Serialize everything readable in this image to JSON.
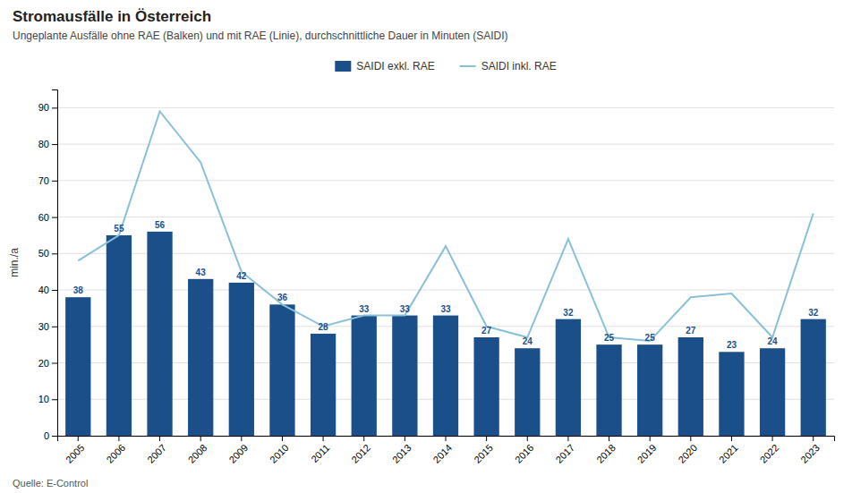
{
  "chart_data": {
    "type": "bar",
    "title": "Stromausfälle in Österreich",
    "subtitle": "Ungeplante Ausfälle ohne RAE (Balken) und mit RAE (Linie), durchschnittliche Dauer in Minuten (SAIDI)",
    "source": "Quelle: E-Control",
    "categories": [
      "2005",
      "2006",
      "2007",
      "2008",
      "2009",
      "2010",
      "2011",
      "2012",
      "2013",
      "2014",
      "2015",
      "2016",
      "2017",
      "2018",
      "2019",
      "2020",
      "2021",
      "2022",
      "2023"
    ],
    "series": [
      {
        "name": "SAIDI exkl. RAE",
        "type": "bar",
        "color": "#1b4f8a",
        "data_labels": true,
        "values": [
          38,
          55,
          56,
          43,
          42,
          36,
          28,
          33,
          33,
          33,
          27,
          24,
          32,
          25,
          25,
          27,
          23,
          24,
          32
        ]
      },
      {
        "name": "SAIDI inkl. RAE",
        "type": "line",
        "color": "#88c0d8",
        "values": [
          48,
          55,
          89,
          75,
          45,
          36,
          30,
          33,
          33,
          52,
          30,
          27,
          54,
          27,
          26,
          38,
          39,
          27,
          61
        ]
      }
    ],
    "ylabel": "min./a",
    "ylim": [
      0,
      95
    ],
    "yticks": [
      0,
      10,
      20,
      30,
      40,
      50,
      60,
      70,
      80,
      90
    ],
    "grid": true,
    "legend": "top"
  }
}
